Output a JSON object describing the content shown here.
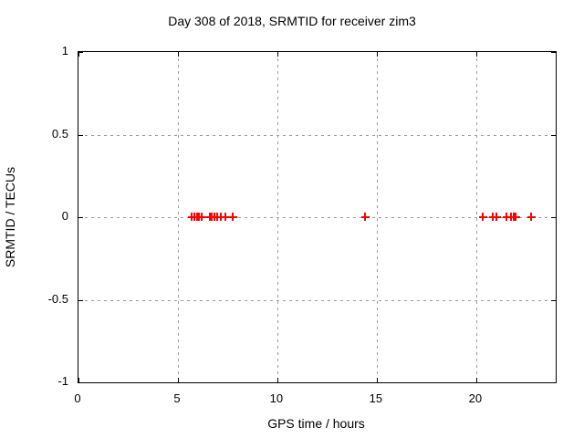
{
  "chart": {
    "title": "Day 308 of 2018, SRMTID for receiver zim3",
    "xlabel": "GPS time / hours",
    "ylabel": "SRMTID / TECUs"
  },
  "chart_data": {
    "type": "scatter",
    "title": "Day 308 of 2018, SRMTID for receiver zim3",
    "xlabel": "GPS time / hours",
    "ylabel": "SRMTID / TECUs",
    "xlim": [
      0,
      24
    ],
    "ylim": [
      -1,
      1
    ],
    "xticks": [
      0,
      5,
      10,
      15,
      20
    ],
    "xtick_labels": [
      "0",
      "5",
      "10",
      "15",
      "20"
    ],
    "yticks": [
      -1,
      -0.5,
      0,
      0.5,
      1
    ],
    "ytick_labels": [
      "-1",
      "-0.5",
      "0",
      "0.5",
      "1"
    ],
    "grid": true,
    "legend": "none",
    "marker": "plus",
    "marker_color": "#ff0000",
    "grid_color": "#9b9b9b",
    "series": [
      {
        "name": "SRMTID",
        "x": [
          5.73,
          5.87,
          5.99,
          6.1,
          6.24,
          6.61,
          6.74,
          6.88,
          7.0,
          7.16,
          7.43,
          7.8,
          14.45,
          20.37,
          20.87,
          21.06,
          21.56,
          21.76,
          21.91,
          22.02,
          22.79
        ],
        "y": [
          0,
          0,
          0,
          0,
          0,
          0,
          0,
          0,
          0,
          0,
          0,
          0,
          0,
          0,
          0,
          0,
          0,
          0,
          0,
          0,
          0
        ]
      }
    ]
  }
}
